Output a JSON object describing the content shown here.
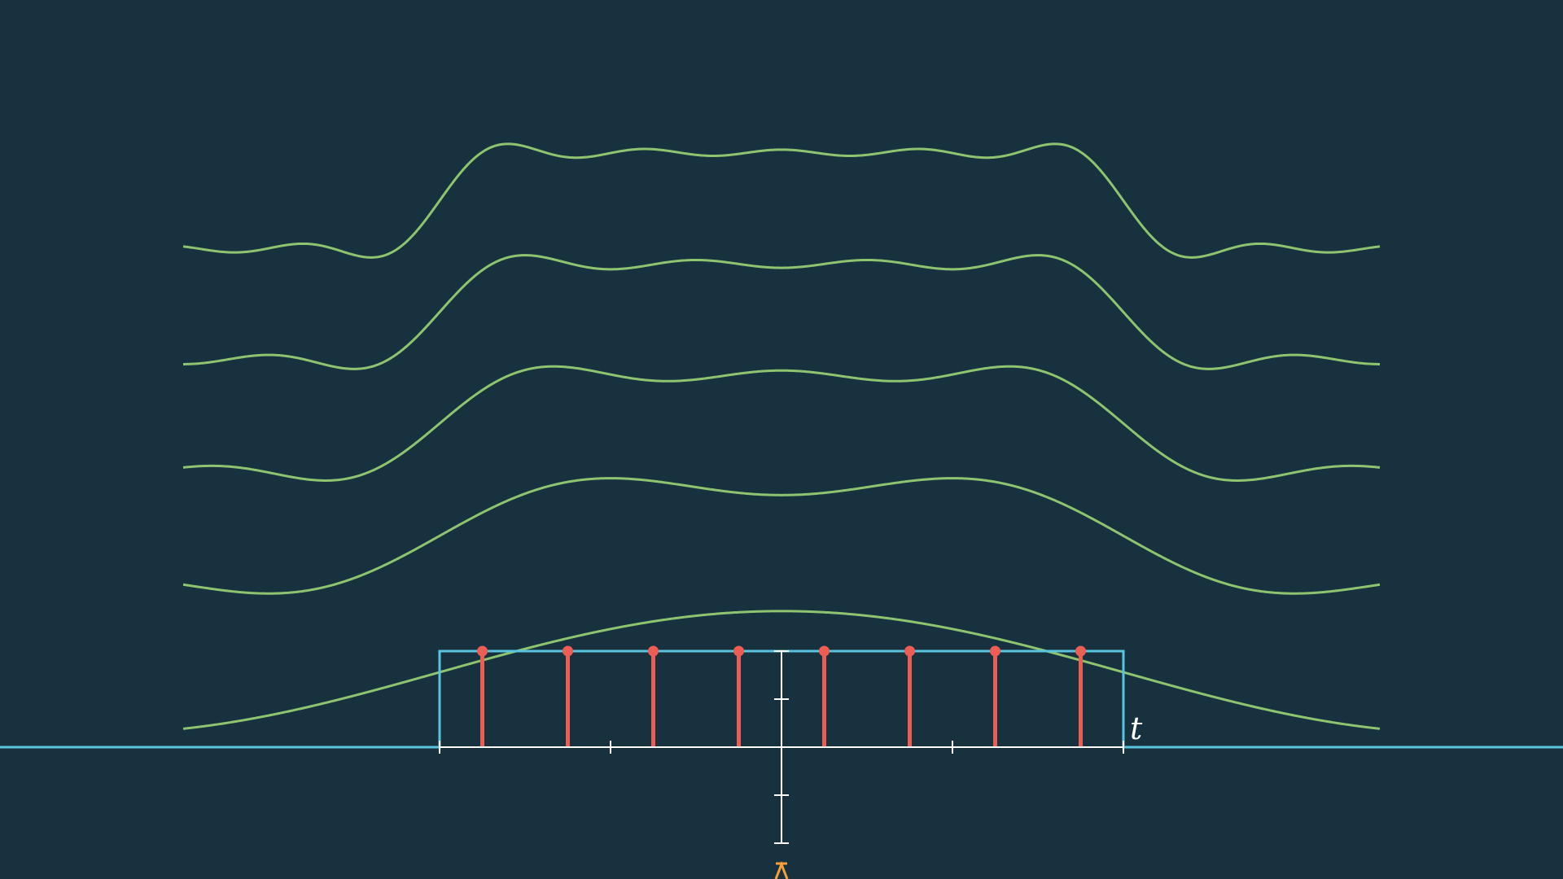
{
  "chart_data": {
    "type": "line",
    "title": "",
    "xlabel": "t",
    "ylabel": "",
    "grid": false,
    "legend": "none",
    "xlim": [
      -4.6,
      4.6
    ],
    "ylim": [
      -1.2,
      1.2
    ],
    "x_ticks": [
      -2,
      -1,
      0,
      1,
      2
    ],
    "y_ticks": [
      -1,
      -0.5,
      0,
      0.5,
      1
    ],
    "rect_pulse": {
      "x_start": -2,
      "x_end": 2,
      "height": 1
    },
    "samples": {
      "x": [
        -1.75,
        -1.25,
        -0.75,
        -0.25,
        0.25,
        0.75,
        1.25,
        1.75
      ],
      "values": [
        1,
        1,
        1,
        1,
        1,
        1,
        1,
        1
      ]
    },
    "series": [
      {
        "harmonics": 1,
        "baseline": 0.28
      },
      {
        "harmonics": 3,
        "baseline": 1.7
      },
      {
        "harmonics": 5,
        "baseline": 2.87
      },
      {
        "harmonics": 7,
        "baseline": 4.03
      },
      {
        "harmonics": 9,
        "baseline": 5.19
      }
    ],
    "fourier_period": 8,
    "colors": {
      "background": "#17313f",
      "fourier": "#8ec46f",
      "rect": "#58c4dd",
      "samples": "#ec5d53",
      "axes": "#ffffff",
      "marker": "#f5a03a"
    }
  }
}
